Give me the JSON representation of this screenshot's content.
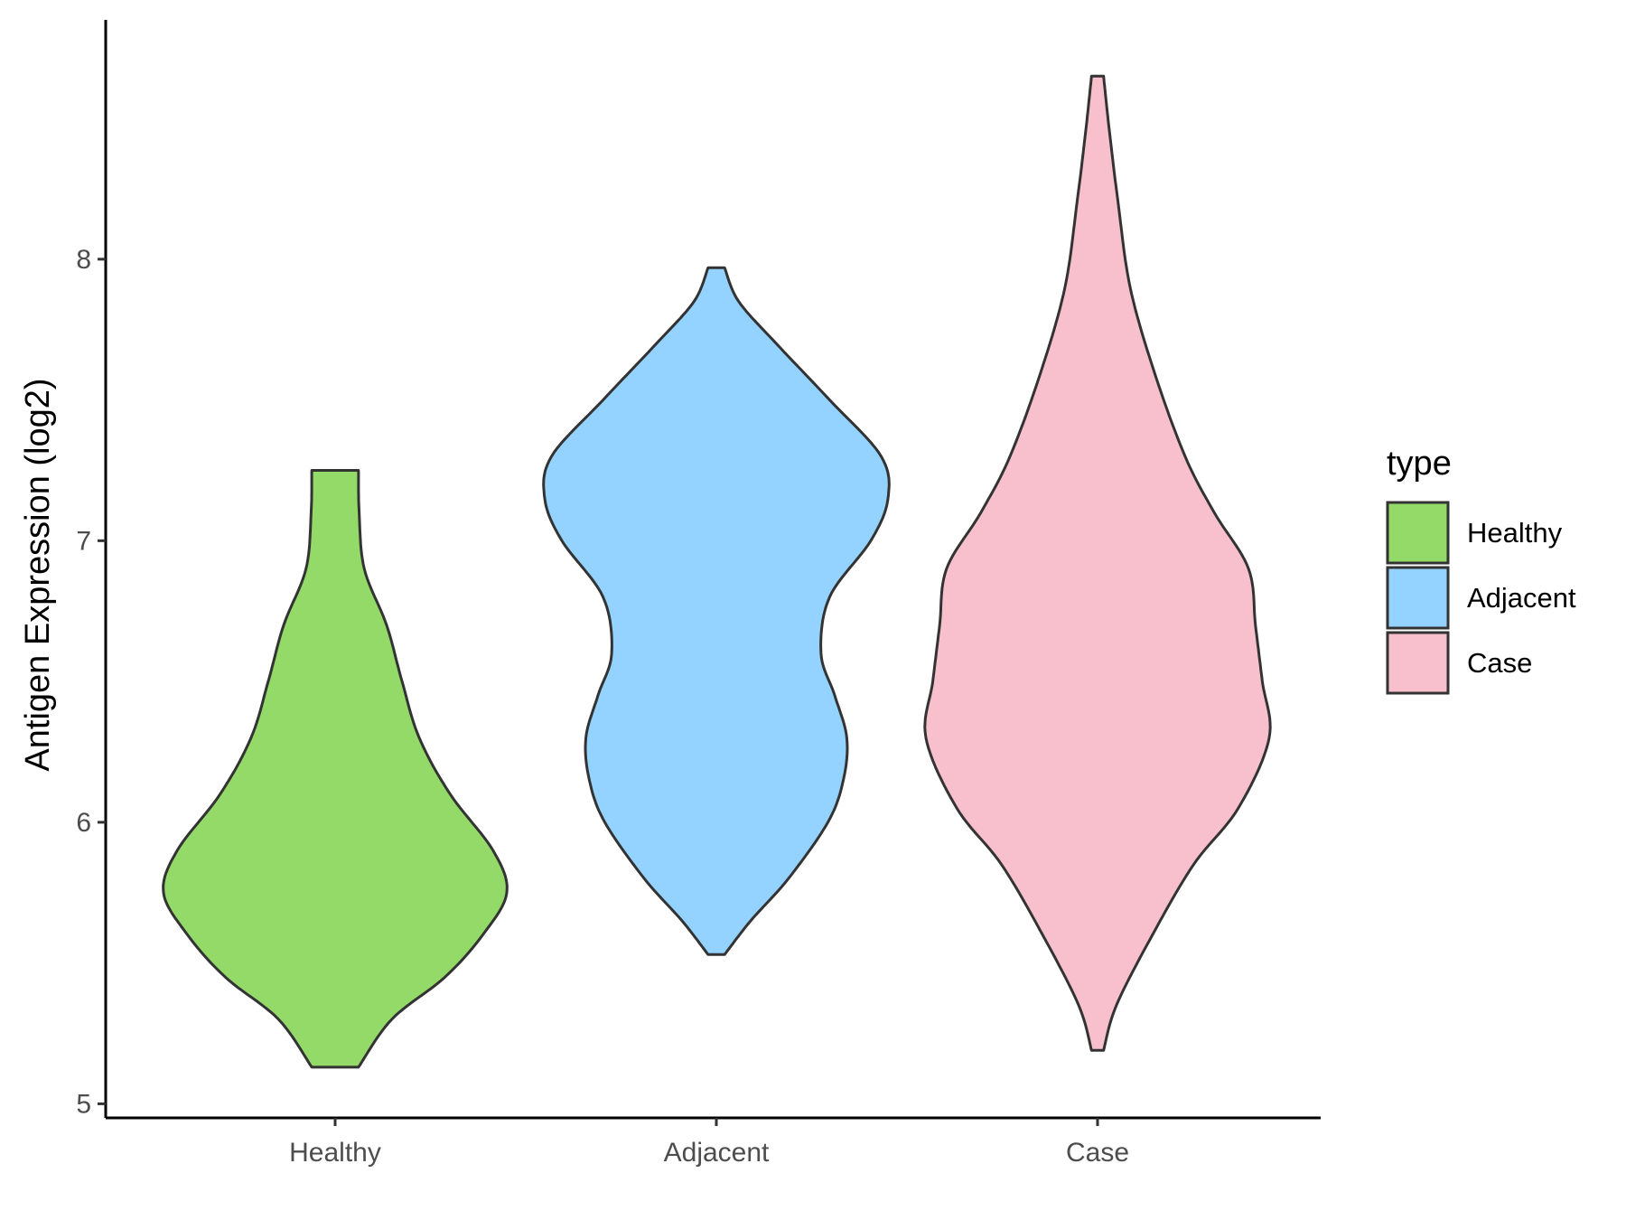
{
  "chart_data": {
    "type": "violin",
    "title": "",
    "xlabel": "",
    "ylabel": "Antigen Expression (log2)",
    "ylim": [
      4.95,
      8.85
    ],
    "yticks": [
      5,
      6,
      7,
      8
    ],
    "categories": [
      "Healthy",
      "Adjacent",
      "Case"
    ],
    "legend": {
      "title": "type",
      "position": "right",
      "entries": [
        {
          "label": "Healthy",
          "color": "#93DA69"
        },
        {
          "label": "Adjacent",
          "color": "#94D3FF"
        },
        {
          "label": "Case",
          "color": "#F8C0CC"
        }
      ]
    },
    "series": [
      {
        "name": "Healthy",
        "color": "#93DA69",
        "min": 5.13,
        "max": 7.25,
        "density_profile": [
          [
            5.13,
            0.136
          ],
          [
            5.3,
            0.33
          ],
          [
            5.45,
            0.64
          ],
          [
            5.6,
            0.86
          ],
          [
            5.75,
            1.0
          ],
          [
            5.9,
            0.92
          ],
          [
            6.1,
            0.67
          ],
          [
            6.3,
            0.49
          ],
          [
            6.5,
            0.39
          ],
          [
            6.7,
            0.3
          ],
          [
            6.9,
            0.17
          ],
          [
            7.1,
            0.14
          ],
          [
            7.25,
            0.136
          ]
        ]
      },
      {
        "name": "Adjacent",
        "color": "#94D3FF",
        "min": 5.53,
        "max": 7.97,
        "density_profile": [
          [
            5.53,
            0.048
          ],
          [
            5.65,
            0.2
          ],
          [
            5.8,
            0.42
          ],
          [
            6.0,
            0.65
          ],
          [
            6.15,
            0.74
          ],
          [
            6.3,
            0.76
          ],
          [
            6.45,
            0.69
          ],
          [
            6.6,
            0.61
          ],
          [
            6.8,
            0.66
          ],
          [
            7.0,
            0.9
          ],
          [
            7.15,
            1.0
          ],
          [
            7.3,
            0.96
          ],
          [
            7.5,
            0.66
          ],
          [
            7.7,
            0.35
          ],
          [
            7.85,
            0.13
          ],
          [
            7.97,
            0.048
          ]
        ]
      },
      {
        "name": "Case",
        "color": "#F8C0CC",
        "min": 5.19,
        "max": 8.65,
        "density_profile": [
          [
            5.19,
            0.035
          ],
          [
            5.35,
            0.11
          ],
          [
            5.6,
            0.32
          ],
          [
            5.85,
            0.56
          ],
          [
            6.05,
            0.82
          ],
          [
            6.3,
            1.0
          ],
          [
            6.5,
            0.96
          ],
          [
            6.7,
            0.92
          ],
          [
            6.9,
            0.88
          ],
          [
            7.1,
            0.68
          ],
          [
            7.3,
            0.51
          ],
          [
            7.6,
            0.33
          ],
          [
            7.9,
            0.19
          ],
          [
            8.2,
            0.12
          ],
          [
            8.45,
            0.07
          ],
          [
            8.65,
            0.035
          ]
        ]
      }
    ]
  }
}
